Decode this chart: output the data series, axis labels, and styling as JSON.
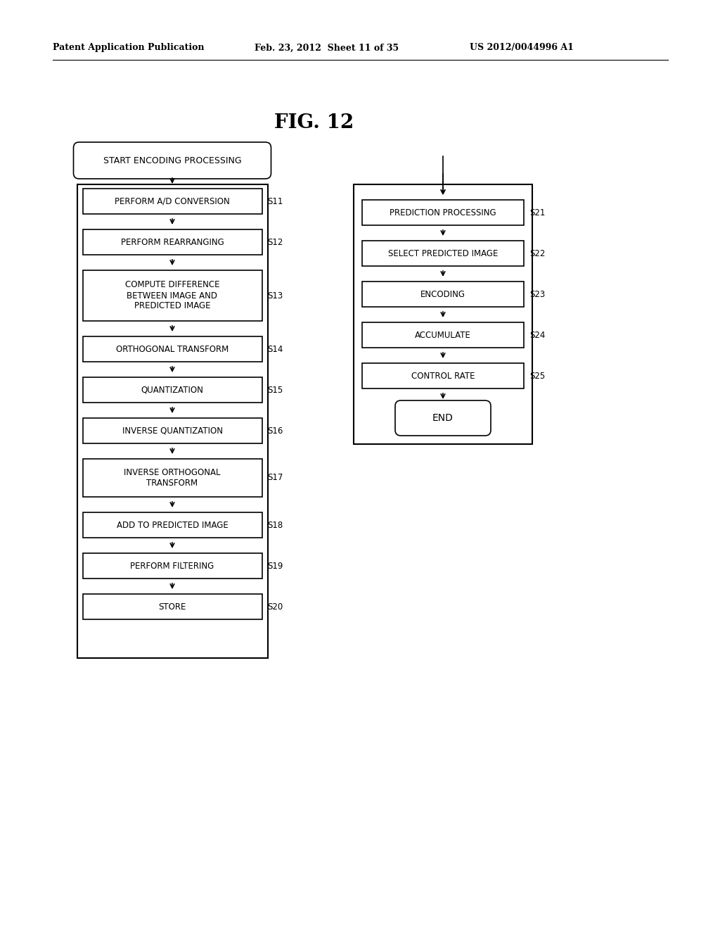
{
  "title": "FIG. 12",
  "header_left": "Patent Application Publication",
  "header_mid": "Feb. 23, 2012  Sheet 11 of 35",
  "header_right": "US 2012/0044996 A1",
  "bg_color": "#ffffff",
  "left_col": {
    "start_node": "START ENCODING PROCESSING",
    "steps": [
      {
        "label": "PERFORM A/D CONVERSION",
        "tag": "S11",
        "lines": 1
      },
      {
        "label": "PERFORM REARRANGING",
        "tag": "S12",
        "lines": 1
      },
      {
        "label": "COMPUTE DIFFERENCE\nBETWEEN IMAGE AND\nPREDICTED IMAGE",
        "tag": "S13",
        "lines": 3
      },
      {
        "label": "ORTHOGONAL TRANSFORM",
        "tag": "S14",
        "lines": 1
      },
      {
        "label": "QUANTIZATION",
        "tag": "S15",
        "lines": 1
      },
      {
        "label": "INVERSE QUANTIZATION",
        "tag": "S16",
        "lines": 1
      },
      {
        "label": "INVERSE ORTHOGONAL\nTRANSFORM",
        "tag": "S17",
        "lines": 2
      },
      {
        "label": "ADD TO PREDICTED IMAGE",
        "tag": "S18",
        "lines": 1
      },
      {
        "label": "PERFORM FILTERING",
        "tag": "S19",
        "lines": 1
      },
      {
        "label": "STORE",
        "tag": "S20",
        "lines": 1
      }
    ]
  },
  "right_col": {
    "steps": [
      {
        "label": "PREDICTION PROCESSING",
        "tag": "S21",
        "lines": 1
      },
      {
        "label": "SELECT PREDICTED IMAGE",
        "tag": "S22",
        "lines": 1
      },
      {
        "label": "ENCODING",
        "tag": "S23",
        "lines": 1
      },
      {
        "label": "ACCUMULATE",
        "tag": "S24",
        "lines": 1
      },
      {
        "label": "CONTROL RATE",
        "tag": "S25",
        "lines": 1
      }
    ],
    "end_node": "END"
  }
}
